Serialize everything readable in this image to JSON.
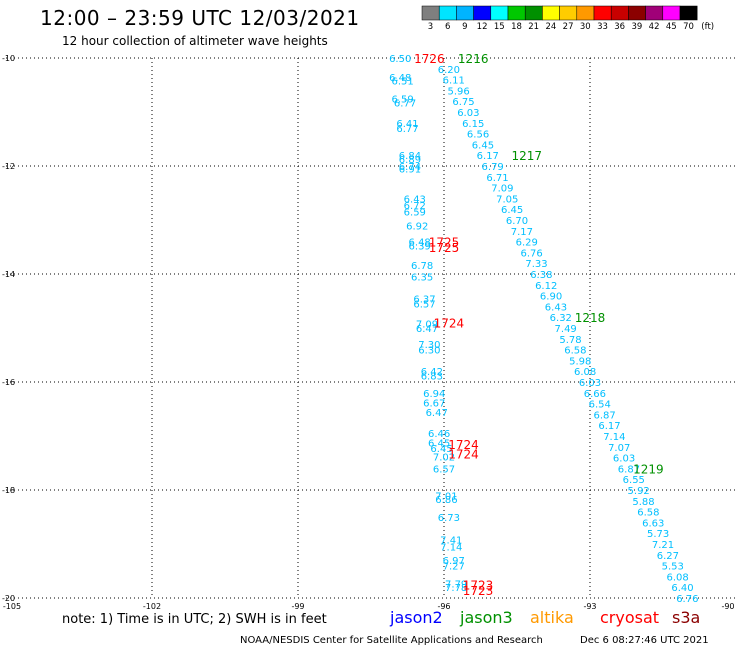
{
  "title": "12:00 – 23:59 UTC 12/03/2021",
  "subtitle": "12 hour collection of altimeter wave heights",
  "colorbar": {
    "labels": [
      "3",
      "6",
      "9",
      "12",
      "15",
      "18",
      "21",
      "24",
      "27",
      "30",
      "33",
      "36",
      "39",
      "42",
      "45",
      "70",
      "(ft)"
    ],
    "colors": [
      "#7f7f7f",
      "#00e5ff",
      "#00b4ff",
      "#0000ff",
      "#00ffff",
      "#00c800",
      "#009000",
      "#ffff00",
      "#ffcc00",
      "#ff9900",
      "#ff0000",
      "#c80000",
      "#8b0000",
      "#a00078",
      "#ff00ff",
      "#000000"
    ]
  },
  "legend": [
    {
      "name": "jason2",
      "color": "#0000ff"
    },
    {
      "name": "jason3",
      "color": "#009000"
    },
    {
      "name": "altika",
      "color": "#ff9900"
    },
    {
      "name": "cryosat",
      "color": "#ff0000"
    },
    {
      "name": "s3a",
      "color": "#8b0000"
    }
  ],
  "footer": {
    "note": "note:  1) Time is in UTC;  2) SWH is in feet",
    "credit": "NOAA/NESDIS Center for Satellite Applications and Research",
    "timestamp": "Dec  6 08:27:46 UTC 2021"
  },
  "chart_data": {
    "type": "scatter",
    "xlim": [
      -105,
      -90
    ],
    "ylim": [
      -20,
      -10
    ],
    "x_ticks": [
      "-105",
      "-102",
      "-99",
      "-96",
      "-93",
      "-90"
    ],
    "y_ticks": [
      "-10",
      "-12",
      "-14",
      "-16",
      "-18",
      "-20"
    ],
    "grid": true,
    "value_color": "#00bfff",
    "label_color_jason3": "#009000",
    "label_color_cryosat": "#ff0000",
    "tracks": [
      {
        "name": "jason3-descending",
        "values": [
          {
            "x": -95.9,
            "y": -10.2,
            "v": "6.20"
          },
          {
            "x": -95.8,
            "y": -10.4,
            "v": "6.11"
          },
          {
            "x": -95.7,
            "y": -10.6,
            "v": "5.96"
          },
          {
            "x": -95.6,
            "y": -10.8,
            "v": "6.75"
          },
          {
            "x": -95.5,
            "y": -11.0,
            "v": "6.03"
          },
          {
            "x": -95.4,
            "y": -11.2,
            "v": "6.15"
          },
          {
            "x": -95.3,
            "y": -11.4,
            "v": "6.56"
          },
          {
            "x": -95.2,
            "y": -11.6,
            "v": "6.45"
          },
          {
            "x": -95.1,
            "y": -11.8,
            "v": "6.17"
          },
          {
            "x": -95.0,
            "y": -12.0,
            "v": "6.79"
          },
          {
            "x": -94.9,
            "y": -12.2,
            "v": "6.71"
          },
          {
            "x": -94.8,
            "y": -12.4,
            "v": "7.09"
          },
          {
            "x": -94.7,
            "y": -12.6,
            "v": "7.05"
          },
          {
            "x": -94.6,
            "y": -12.8,
            "v": "6.45"
          },
          {
            "x": -94.5,
            "y": -13.0,
            "v": "6.70"
          },
          {
            "x": -94.4,
            "y": -13.2,
            "v": "7.17"
          },
          {
            "x": -94.3,
            "y": -13.4,
            "v": "6.29"
          },
          {
            "x": -94.2,
            "y": -13.6,
            "v": "6.76"
          },
          {
            "x": -94.1,
            "y": -13.8,
            "v": "7.33"
          },
          {
            "x": -94.0,
            "y": -14.0,
            "v": "6.38"
          },
          {
            "x": -93.9,
            "y": -14.2,
            "v": "6.12"
          },
          {
            "x": -93.8,
            "y": -14.4,
            "v": "6.90"
          },
          {
            "x": -93.7,
            "y": -14.6,
            "v": "6.43"
          },
          {
            "x": -93.6,
            "y": -14.8,
            "v": "6.32"
          },
          {
            "x": -93.5,
            "y": -15.0,
            "v": "7.49"
          },
          {
            "x": -93.4,
            "y": -15.2,
            "v": "5.78"
          },
          {
            "x": -93.3,
            "y": -15.4,
            "v": "6.58"
          },
          {
            "x": -93.2,
            "y": -15.6,
            "v": "5.98"
          },
          {
            "x": -93.1,
            "y": -15.8,
            "v": "6.08"
          },
          {
            "x": -93.0,
            "y": -16.0,
            "v": "6.03"
          },
          {
            "x": -92.9,
            "y": -16.2,
            "v": "6.66"
          },
          {
            "x": -92.8,
            "y": -16.4,
            "v": "6.54"
          },
          {
            "x": -92.7,
            "y": -16.6,
            "v": "6.87"
          },
          {
            "x": -92.6,
            "y": -16.8,
            "v": "6.17"
          },
          {
            "x": -92.5,
            "y": -17.0,
            "v": "7.14"
          },
          {
            "x": -92.4,
            "y": -17.2,
            "v": "7.07"
          },
          {
            "x": -92.3,
            "y": -17.4,
            "v": "6.03"
          },
          {
            "x": -92.2,
            "y": -17.6,
            "v": "6.87"
          },
          {
            "x": -92.1,
            "y": -17.8,
            "v": "6.55"
          },
          {
            "x": -92.0,
            "y": -18.0,
            "v": "5.92"
          },
          {
            "x": -91.9,
            "y": -18.2,
            "v": "5.88"
          },
          {
            "x": -91.8,
            "y": -18.4,
            "v": "6.58"
          },
          {
            "x": -91.7,
            "y": -18.6,
            "v": "6.63"
          },
          {
            "x": -91.6,
            "y": -18.8,
            "v": "5.73"
          },
          {
            "x": -91.5,
            "y": -19.0,
            "v": "7.21"
          },
          {
            "x": -91.4,
            "y": -19.2,
            "v": "6.27"
          },
          {
            "x": -91.3,
            "y": -19.4,
            "v": "5.53"
          },
          {
            "x": -91.2,
            "y": -19.6,
            "v": "6.08"
          },
          {
            "x": -91.1,
            "y": -19.8,
            "v": "6.40"
          },
          {
            "x": -91.0,
            "y": -20.0,
            "v": "6.76"
          }
        ]
      },
      {
        "name": "cryosat-track",
        "values": [
          {
            "x": -96.9,
            "y": -10.0,
            "v": "6.50"
          },
          {
            "x": -96.9,
            "y": -10.35,
            "v": "6.48"
          },
          {
            "x": -96.85,
            "y": -10.42,
            "v": "6.51"
          },
          {
            "x": -96.85,
            "y": -10.75,
            "v": "6.59"
          },
          {
            "x": -96.8,
            "y": -10.82,
            "v": "6.77"
          },
          {
            "x": -96.75,
            "y": -11.2,
            "v": "6.41"
          },
          {
            "x": -96.75,
            "y": -11.3,
            "v": "6.77"
          },
          {
            "x": -96.7,
            "y": -11.8,
            "v": "6.84"
          },
          {
            "x": -96.7,
            "y": -11.87,
            "v": "6.89"
          },
          {
            "x": -96.7,
            "y": -12.0,
            "v": "6.74"
          },
          {
            "x": -96.7,
            "y": -12.05,
            "v": "6.91"
          },
          {
            "x": -96.6,
            "y": -12.6,
            "v": "6.43"
          },
          {
            "x": -96.6,
            "y": -12.72,
            "v": "6.72"
          },
          {
            "x": -96.6,
            "y": -12.84,
            "v": "6.59"
          },
          {
            "x": -96.55,
            "y": -13.1,
            "v": "6.92"
          },
          {
            "x": -96.5,
            "y": -13.4,
            "v": "6.48"
          },
          {
            "x": -96.5,
            "y": -13.47,
            "v": "6.39"
          },
          {
            "x": -96.45,
            "y": -13.83,
            "v": "6.78"
          },
          {
            "x": -96.45,
            "y": -14.05,
            "v": "6.35"
          },
          {
            "x": -96.4,
            "y": -14.45,
            "v": "6.37"
          },
          {
            "x": -96.4,
            "y": -14.55,
            "v": "6.57"
          },
          {
            "x": -96.35,
            "y": -14.92,
            "v": "7.09"
          },
          {
            "x": -96.35,
            "y": -15.0,
            "v": "6.47"
          },
          {
            "x": -96.3,
            "y": -15.3,
            "v": "7.30"
          },
          {
            "x": -96.3,
            "y": -15.4,
            "v": "6.30"
          },
          {
            "x": -96.25,
            "y": -15.8,
            "v": "6.42"
          },
          {
            "x": -96.25,
            "y": -15.88,
            "v": "6.83"
          },
          {
            "x": -96.2,
            "y": -16.2,
            "v": "6.94"
          },
          {
            "x": -96.2,
            "y": -16.38,
            "v": "6.67"
          },
          {
            "x": -96.15,
            "y": -16.56,
            "v": "6.47"
          },
          {
            "x": -96.1,
            "y": -16.94,
            "v": "6.46"
          },
          {
            "x": -96.1,
            "y": -17.12,
            "v": "6.45"
          },
          {
            "x": -96.05,
            "y": -17.22,
            "v": "6.45"
          },
          {
            "x": -96.0,
            "y": -17.38,
            "v": "7.02"
          },
          {
            "x": -96.0,
            "y": -17.6,
            "v": "6.57"
          },
          {
            "x": -95.95,
            "y": -18.1,
            "v": "7.01"
          },
          {
            "x": -95.95,
            "y": -18.17,
            "v": "6.86"
          },
          {
            "x": -95.9,
            "y": -18.5,
            "v": "6.73"
          },
          {
            "x": -95.85,
            "y": -18.92,
            "v": "7.41"
          },
          {
            "x": -95.85,
            "y": -19.05,
            "v": "7.14"
          },
          {
            "x": -95.8,
            "y": -19.3,
            "v": "6.97"
          },
          {
            "x": -95.8,
            "y": -19.4,
            "v": "7.27"
          },
          {
            "x": -95.75,
            "y": -19.73,
            "v": "7.79"
          },
          {
            "x": -95.75,
            "y": -19.8,
            "v": "7.78"
          }
        ]
      }
    ],
    "time_labels": [
      {
        "x": -96.3,
        "y": -10.0,
        "text": "1726",
        "sat": "cryosat"
      },
      {
        "x": -95.4,
        "y": -10.0,
        "text": "1216",
        "sat": "jason3"
      },
      {
        "x": -94.3,
        "y": -11.8,
        "text": "1217",
        "sat": "jason3"
      },
      {
        "x": -96.0,
        "y": -13.4,
        "text": "1725",
        "sat": "cryosat"
      },
      {
        "x": -96.0,
        "y": -13.5,
        "text": "1725",
        "sat": "cryosat"
      },
      {
        "x": -95.9,
        "y": -14.9,
        "text": "1724",
        "sat": "cryosat"
      },
      {
        "x": -93.0,
        "y": -14.8,
        "text": "1218",
        "sat": "jason3"
      },
      {
        "x": -95.6,
        "y": -17.15,
        "text": "1724",
        "sat": "cryosat"
      },
      {
        "x": -95.6,
        "y": -17.32,
        "text": "1724",
        "sat": "cryosat"
      },
      {
        "x": -91.8,
        "y": -17.6,
        "text": "1219",
        "sat": "jason3"
      },
      {
        "x": -95.3,
        "y": -19.75,
        "text": "1723",
        "sat": "cryosat"
      },
      {
        "x": -95.3,
        "y": -19.85,
        "text": "1723",
        "sat": "cryosat"
      }
    ]
  }
}
